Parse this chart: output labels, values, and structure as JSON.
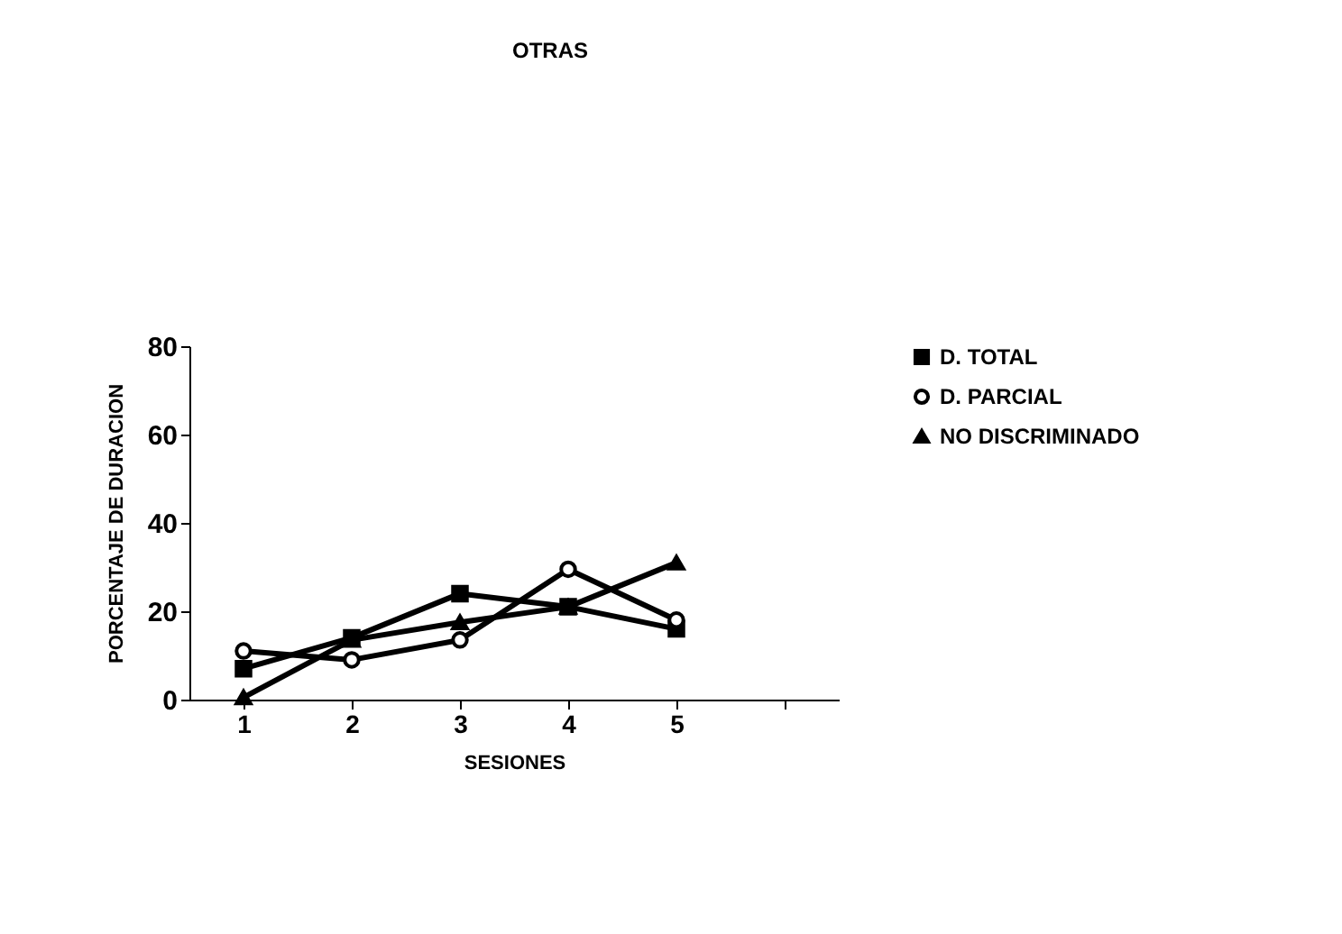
{
  "chart_data": {
    "type": "line",
    "title": "OTRAS",
    "xlabel": "SESIONES",
    "ylabel": "PORCENTAJE  DE  DURACION",
    "categories": [
      "1",
      "2",
      "3",
      "4",
      "5",
      null
    ],
    "series": [
      {
        "name": "D. TOTAL",
        "color": "#000000",
        "marker": "square",
        "values": [
          7,
          14,
          24,
          21,
          16,
          null
        ]
      },
      {
        "name": "D. PARCIAL",
        "color": "#000000",
        "marker": "circle",
        "values": [
          11,
          9,
          13.5,
          29.5,
          18,
          null
        ]
      },
      {
        "name": "NO DISCRIMINADO",
        "color": "#000000",
        "marker": "triangle",
        "values": [
          0.5,
          13.5,
          17.5,
          21,
          31,
          null
        ]
      }
    ],
    "ylim": [
      0,
      80
    ],
    "yticks": [
      0,
      20,
      40,
      60,
      80
    ],
    "grid": false,
    "legend": "right"
  }
}
